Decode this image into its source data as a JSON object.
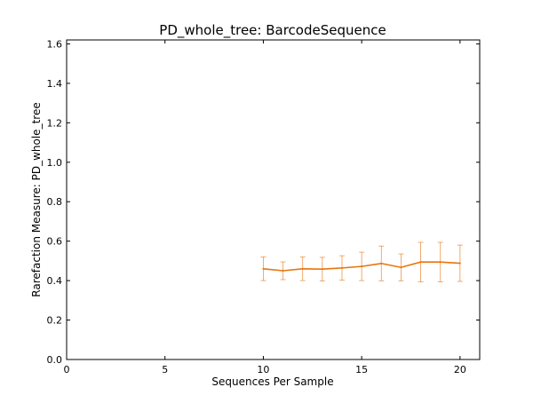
{
  "chart_data": {
    "type": "line",
    "title": "PD_whole_tree: BarcodeSequence",
    "xlabel": "Sequences Per Sample",
    "ylabel": "Rarefaction Measure: PD_whole_tree",
    "xlim": [
      0,
      21
    ],
    "ylim": [
      0.0,
      1.62
    ],
    "xticks": [
      0,
      5,
      10,
      15,
      20
    ],
    "xtick_labels": [
      "0",
      "5",
      "10",
      "15",
      "20"
    ],
    "yticks": [
      0.0,
      0.2,
      0.4,
      0.6,
      0.8,
      1.0,
      1.2,
      1.4,
      1.6
    ],
    "ytick_labels": [
      "0.0",
      "0.2",
      "0.4",
      "0.6",
      "0.8",
      "1.0",
      "1.2",
      "1.4",
      "1.6"
    ],
    "grid": false,
    "legend": "none",
    "series": [
      {
        "color": "#e8740c",
        "x": [
          10,
          11,
          12,
          13,
          14,
          15,
          16,
          17,
          18,
          19,
          20
        ],
        "y": [
          0.46,
          0.45,
          0.46,
          0.458,
          0.464,
          0.472,
          0.487,
          0.467,
          0.494,
          0.494,
          0.488
        ],
        "error": [
          0.06,
          0.045,
          0.06,
          0.06,
          0.062,
          0.072,
          0.088,
          0.068,
          0.1,
          0.1,
          0.092
        ]
      }
    ]
  }
}
